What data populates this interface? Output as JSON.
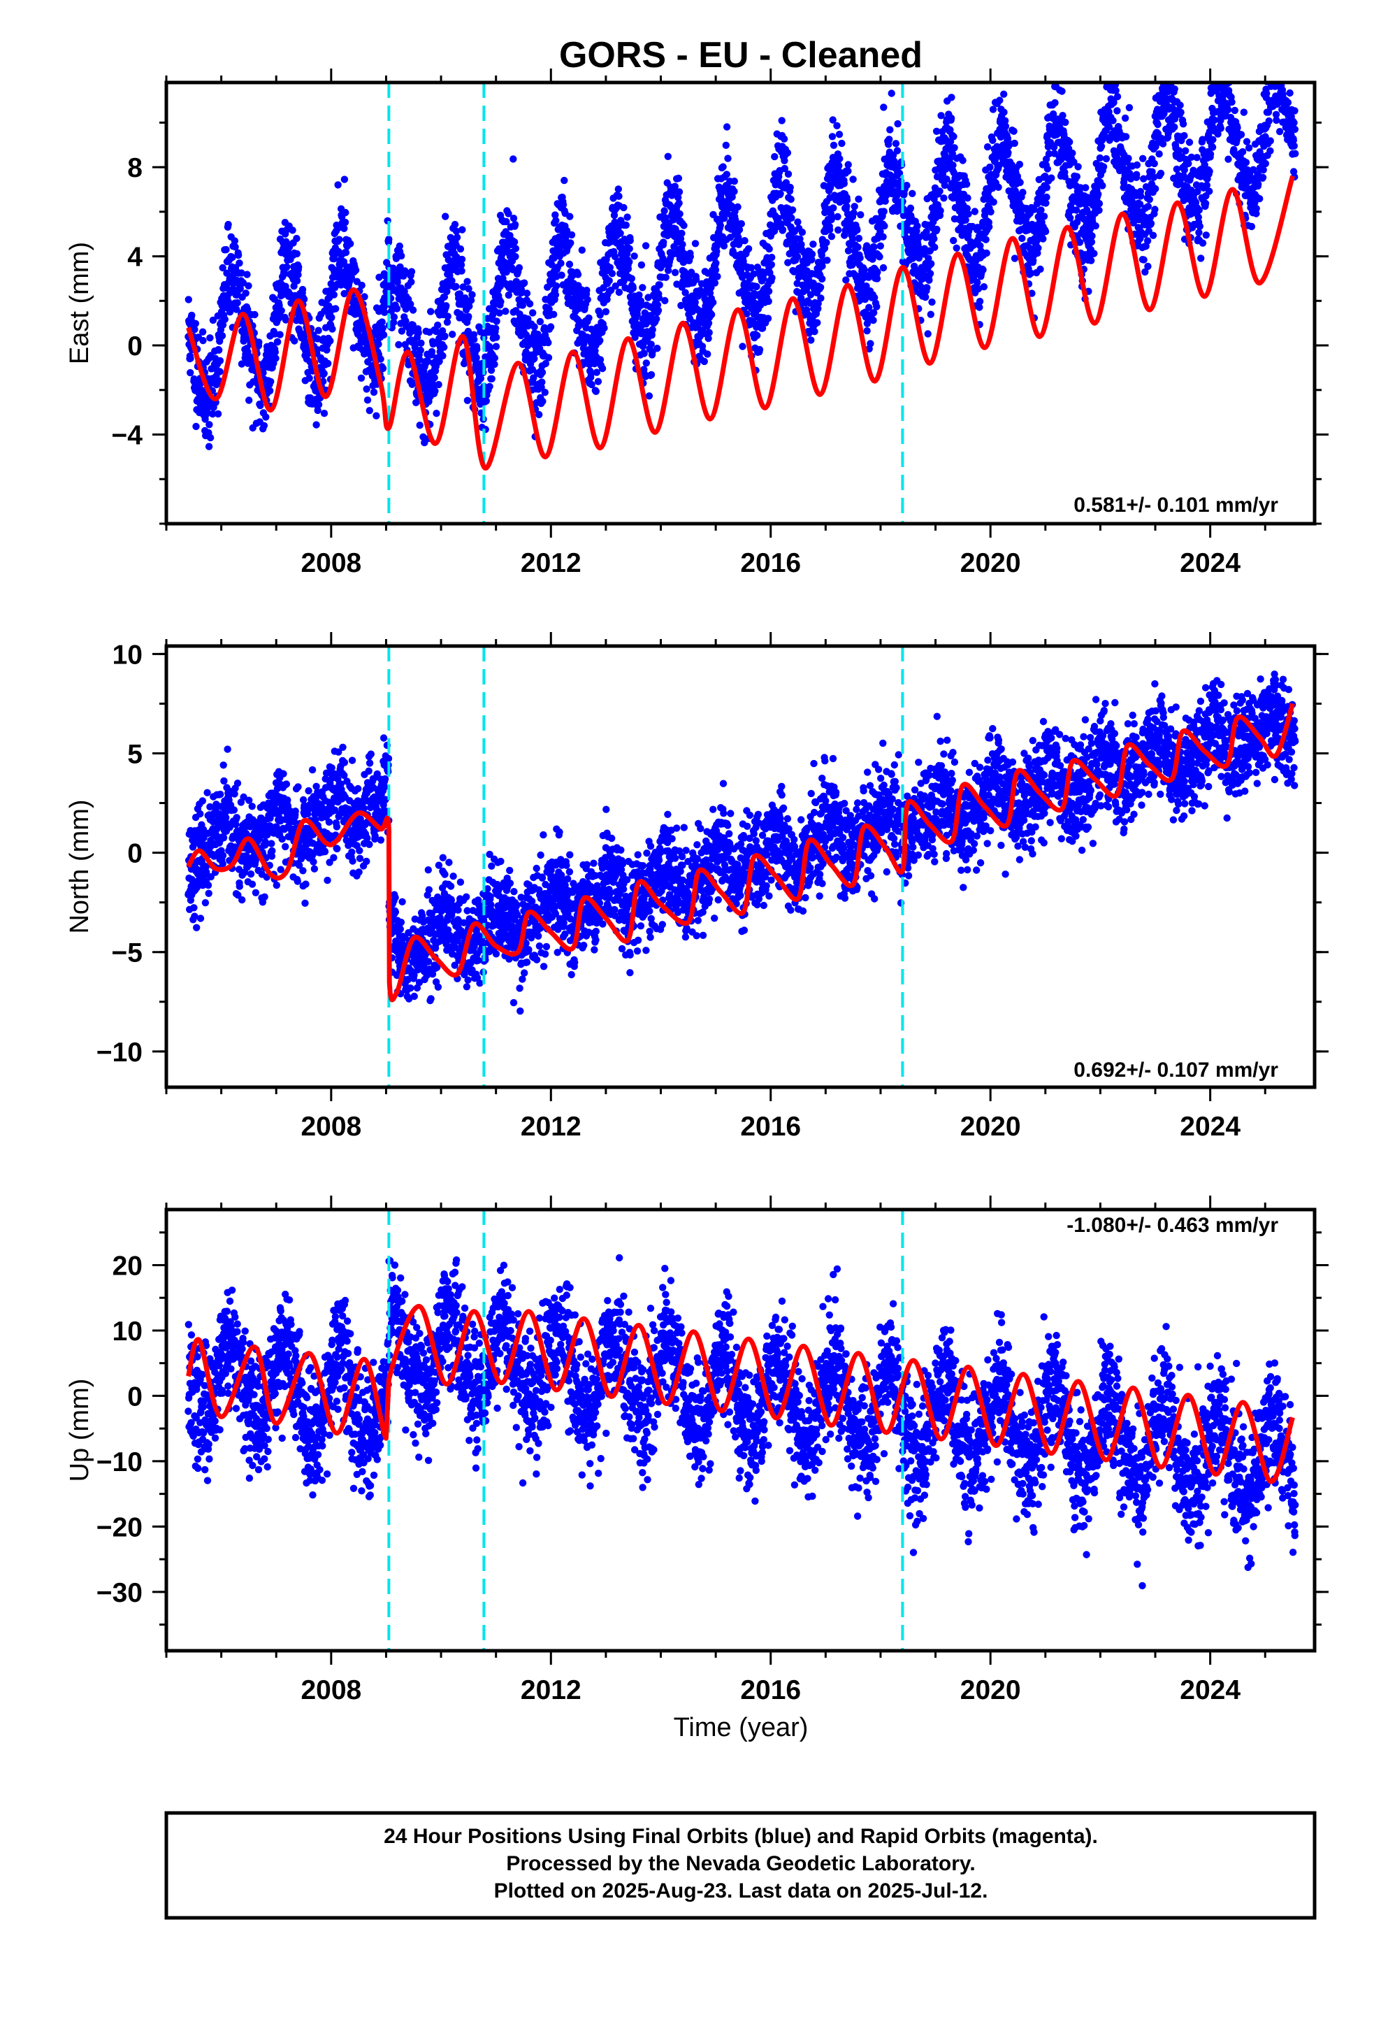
{
  "title": "GORS  - EU - Cleaned",
  "x_axis_label": "Time (year)",
  "footer": {
    "line1": "24 Hour Positions Using Final Orbits (blue) and Rapid Orbits (magenta).",
    "line2": "Processed by the Nevada Geodetic Laboratory.",
    "line3": "Plotted on 2025-Aug-23. Last data on 2025-Jul-12."
  },
  "colors": {
    "data": "#0000ff",
    "fit": "#ff0000",
    "break": "#00e5ee",
    "frame": "#000000"
  },
  "chart_data": [
    {
      "type": "scatter",
      "name": "East",
      "ylabel": "East (mm)",
      "rate": "0.581+/- 0.101 mm/yr",
      "xlim": [
        2005.0,
        2025.9
      ],
      "ylim": [
        -8.0,
        11.8
      ],
      "yticks": [
        -4,
        0,
        4,
        8
      ],
      "xticks": [
        2008,
        2012,
        2016,
        2020,
        2024
      ],
      "breaks": [
        2009.05,
        2010.78,
        2018.4
      ],
      "model": {
        "start": 2005.4,
        "end": 2025.55,
        "offset": 0.0,
        "trend": 0.581,
        "annual_amp": 2.6,
        "annual_phase": 0.2,
        "semiannual_amp": 0.4,
        "noise": 1.1,
        "steps": [
          [
            2009.05,
            -2.0
          ]
        ],
        "seed": 11
      },
      "fit_points": [
        [
          2005.4,
          0.8
        ],
        [
          2005.9,
          -2.4
        ],
        [
          2006.4,
          1.4
        ],
        [
          2006.9,
          -2.9
        ],
        [
          2007.4,
          2.0
        ],
        [
          2007.9,
          -2.3
        ],
        [
          2008.4,
          2.5
        ],
        [
          2008.9,
          -1.7
        ],
        [
          2009.05,
          -3.7
        ],
        [
          2009.4,
          -0.3
        ],
        [
          2009.9,
          -4.4
        ],
        [
          2010.4,
          0.4
        ],
        [
          2010.8,
          -5.5
        ],
        [
          2011.4,
          -0.8
        ],
        [
          2011.9,
          -5.0
        ],
        [
          2012.4,
          -0.3
        ],
        [
          2012.9,
          -4.6
        ],
        [
          2013.4,
          0.3
        ],
        [
          2013.9,
          -3.9
        ],
        [
          2014.4,
          1.0
        ],
        [
          2014.9,
          -3.3
        ],
        [
          2015.4,
          1.6
        ],
        [
          2015.9,
          -2.8
        ],
        [
          2016.4,
          2.1
        ],
        [
          2016.9,
          -2.2
        ],
        [
          2017.4,
          2.7
        ],
        [
          2017.9,
          -1.6
        ],
        [
          2018.4,
          3.5
        ],
        [
          2018.9,
          -0.8
        ],
        [
          2019.4,
          4.1
        ],
        [
          2019.9,
          -0.1
        ],
        [
          2020.4,
          4.8
        ],
        [
          2020.9,
          0.4
        ],
        [
          2021.4,
          5.3
        ],
        [
          2021.9,
          1.0
        ],
        [
          2022.4,
          5.9
        ],
        [
          2022.9,
          1.6
        ],
        [
          2023.4,
          6.4
        ],
        [
          2023.9,
          2.2
        ],
        [
          2024.4,
          7.0
        ],
        [
          2024.9,
          2.8
        ],
        [
          2025.5,
          7.6
        ]
      ]
    },
    {
      "type": "scatter",
      "name": "North",
      "ylabel": "North (mm)",
      "rate": "0.692+/- 0.107 mm/yr",
      "xlim": [
        2005.0,
        2025.9
      ],
      "ylim": [
        -11.8,
        10.4
      ],
      "yticks": [
        -10,
        -5,
        0,
        5,
        10
      ],
      "xticks": [
        2008,
        2012,
        2016,
        2020,
        2024
      ],
      "breaks": [
        2009.05,
        2010.78,
        2018.4
      ],
      "model": {
        "start": 2005.4,
        "end": 2025.55,
        "offset": 0.0,
        "trend": 0.692,
        "annual_amp": 0.8,
        "annual_phase": 1.3,
        "semiannual_amp": 0.3,
        "noise": 1.2,
        "steps": [
          [
            2009.05,
            -7.5
          ]
        ],
        "seed": 23
      },
      "fit_points": [
        [
          2005.4,
          -0.7
        ],
        [
          2005.6,
          0.1
        ],
        [
          2005.9,
          -0.8
        ],
        [
          2006.2,
          -0.6
        ],
        [
          2006.5,
          0.7
        ],
        [
          2006.9,
          -1.1
        ],
        [
          2007.2,
          -0.9
        ],
        [
          2007.5,
          1.6
        ],
        [
          2007.9,
          0.5
        ],
        [
          2008.1,
          0.6
        ],
        [
          2008.5,
          2.0
        ],
        [
          2008.9,
          1.2
        ],
        [
          2009.05,
          1.2
        ],
        [
          2009.06,
          -6.5
        ],
        [
          2009.2,
          -7.0
        ],
        [
          2009.5,
          -4.3
        ],
        [
          2009.9,
          -5.3
        ],
        [
          2010.3,
          -6.1
        ],
        [
          2010.6,
          -3.6
        ],
        [
          2011.0,
          -4.7
        ],
        [
          2011.4,
          -5.0
        ],
        [
          2011.6,
          -3.0
        ],
        [
          2012.0,
          -4.0
        ],
        [
          2012.4,
          -4.8
        ],
        [
          2012.6,
          -2.3
        ],
        [
          2013.0,
          -3.3
        ],
        [
          2013.4,
          -4.4
        ],
        [
          2013.6,
          -1.5
        ],
        [
          2014.0,
          -2.6
        ],
        [
          2014.5,
          -3.5
        ],
        [
          2014.7,
          -0.9
        ],
        [
          2015.1,
          -2.0
        ],
        [
          2015.5,
          -3.0
        ],
        [
          2015.7,
          -0.2
        ],
        [
          2016.1,
          -1.2
        ],
        [
          2016.5,
          -2.3
        ],
        [
          2016.7,
          0.6
        ],
        [
          2017.1,
          -0.6
        ],
        [
          2017.5,
          -1.6
        ],
        [
          2017.7,
          1.3
        ],
        [
          2018.1,
          0.2
        ],
        [
          2018.4,
          -0.9
        ],
        [
          2018.5,
          2.5
        ],
        [
          2018.9,
          1.4
        ],
        [
          2019.3,
          0.6
        ],
        [
          2019.5,
          3.4
        ],
        [
          2019.9,
          2.3
        ],
        [
          2020.3,
          1.4
        ],
        [
          2020.5,
          4.1
        ],
        [
          2020.9,
          3.0
        ],
        [
          2021.3,
          2.2
        ],
        [
          2021.5,
          4.6
        ],
        [
          2021.9,
          3.7
        ],
        [
          2022.3,
          2.9
        ],
        [
          2022.5,
          5.4
        ],
        [
          2022.9,
          4.4
        ],
        [
          2023.3,
          3.7
        ],
        [
          2023.5,
          6.1
        ],
        [
          2023.9,
          5.1
        ],
        [
          2024.3,
          4.4
        ],
        [
          2024.5,
          6.8
        ],
        [
          2024.9,
          5.8
        ],
        [
          2025.2,
          4.9
        ],
        [
          2025.5,
          7.5
        ]
      ]
    },
    {
      "type": "scatter",
      "name": "Up",
      "ylabel": "Up (mm)",
      "rate": "-1.080+/- 0.463 mm/yr",
      "xlim": [
        2005.0,
        2025.9
      ],
      "ylim": [
        -39.0,
        28.5
      ],
      "yticks": [
        -30,
        -20,
        -10,
        0,
        10,
        20
      ],
      "xticks": [
        2008,
        2012,
        2016,
        2020,
        2024
      ],
      "breaks": [
        2009.05,
        2010.78,
        2018.4
      ],
      "model": {
        "start": 2005.4,
        "end": 2025.55,
        "offset": 3.0,
        "trend": -1.08,
        "annual_amp": 6.0,
        "annual_phase": 0.6,
        "semiannual_amp": 0.6,
        "noise": 4.5,
        "steps": [
          [
            2009.05,
            8.0
          ]
        ],
        "seed": 37
      },
      "fit_points": [
        [
          2005.4,
          3.0
        ],
        [
          2005.6,
          8.5
        ],
        [
          2006.0,
          -3.2
        ],
        [
          2006.6,
          7.5
        ],
        [
          2007.0,
          -4.2
        ],
        [
          2007.6,
          6.5
        ],
        [
          2008.1,
          -5.7
        ],
        [
          2008.6,
          5.6
        ],
        [
          2009.0,
          -6.5
        ],
        [
          2009.05,
          2.5
        ],
        [
          2009.6,
          13.7
        ],
        [
          2010.1,
          1.8
        ],
        [
          2010.6,
          12.9
        ],
        [
          2011.1,
          2.0
        ],
        [
          2011.6,
          12.9
        ],
        [
          2012.1,
          0.9
        ],
        [
          2012.6,
          11.8
        ],
        [
          2013.1,
          -0.1
        ],
        [
          2013.6,
          10.8
        ],
        [
          2014.1,
          -1.2
        ],
        [
          2014.6,
          9.8
        ],
        [
          2015.1,
          -2.3
        ],
        [
          2015.6,
          8.7
        ],
        [
          2016.1,
          -3.4
        ],
        [
          2016.6,
          7.6
        ],
        [
          2017.1,
          -4.5
        ],
        [
          2017.6,
          6.5
        ],
        [
          2018.1,
          -5.6
        ],
        [
          2018.6,
          5.4
        ],
        [
          2019.1,
          -6.6
        ],
        [
          2019.6,
          4.4
        ],
        [
          2020.1,
          -7.6
        ],
        [
          2020.6,
          3.3
        ],
        [
          2021.1,
          -8.8
        ],
        [
          2021.6,
          2.2
        ],
        [
          2022.1,
          -9.8
        ],
        [
          2022.6,
          1.2
        ],
        [
          2023.1,
          -10.9
        ],
        [
          2023.6,
          0.1
        ],
        [
          2024.1,
          -12.0
        ],
        [
          2024.6,
          -1.0
        ],
        [
          2025.1,
          -13.1
        ],
        [
          2025.5,
          -3.3
        ]
      ]
    }
  ]
}
